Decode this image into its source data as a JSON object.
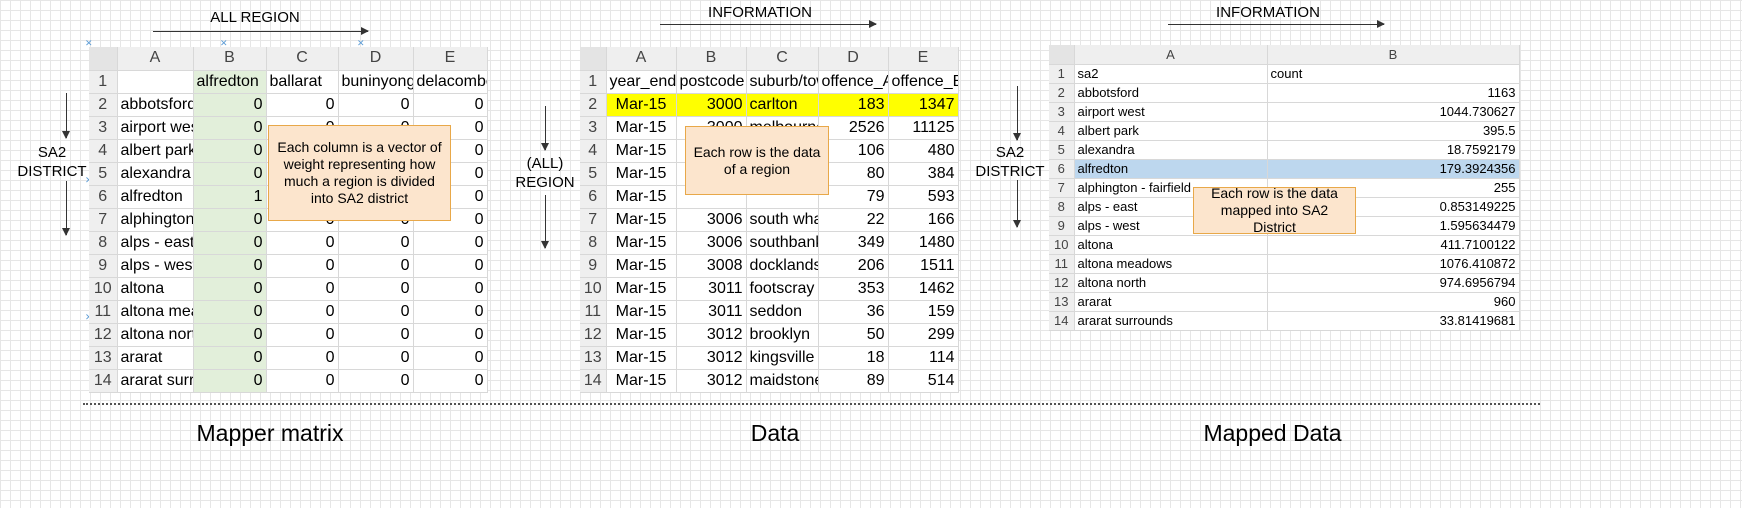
{
  "mapper": {
    "caption": "Mapper matrix",
    "top_label": "ALL REGION",
    "side_label": "SA2\nDISTRICT",
    "note": "Each column is a vector of weight representing how much a region is divided into SA2 district",
    "col_letters": [
      "A",
      "B",
      "C",
      "D",
      "E"
    ],
    "rows": [
      {
        "n": "1",
        "a": "",
        "b": "alfredton",
        "c": "ballarat",
        "d": "buninyong",
        "e": "delacombe"
      },
      {
        "n": "2",
        "a": "abbotsford",
        "b": "0",
        "c": "0",
        "d": "0",
        "e": "0"
      },
      {
        "n": "3",
        "a": "airport west",
        "b": "0",
        "c": "0",
        "d": "0",
        "e": "0"
      },
      {
        "n": "4",
        "a": "albert park",
        "b": "0",
        "c": "0",
        "d": "0",
        "e": "0"
      },
      {
        "n": "5",
        "a": "alexandra",
        "b": "0",
        "c": "0",
        "d": "0",
        "e": "0"
      },
      {
        "n": "6",
        "a": "alfredton",
        "b": "1",
        "c": "0",
        "d": "0",
        "e": "0"
      },
      {
        "n": "7",
        "a": "alphington",
        "b": "0",
        "c": "0",
        "d": "0",
        "e": "0"
      },
      {
        "n": "8",
        "a": "alps - east",
        "b": "0",
        "c": "0",
        "d": "0",
        "e": "0"
      },
      {
        "n": "9",
        "a": "alps - west",
        "b": "0",
        "c": "0",
        "d": "0",
        "e": "0"
      },
      {
        "n": "10",
        "a": "altona",
        "b": "0",
        "c": "0",
        "d": "0",
        "e": "0"
      },
      {
        "n": "11",
        "a": "altona meadows",
        "b": "0",
        "c": "0",
        "d": "0",
        "e": "0"
      },
      {
        "n": "12",
        "a": "altona north",
        "b": "0",
        "c": "0",
        "d": "0",
        "e": "0"
      },
      {
        "n": "13",
        "a": "ararat",
        "b": "0",
        "c": "0",
        "d": "0",
        "e": "0"
      },
      {
        "n": "14",
        "a": "ararat surrounds",
        "b": "0",
        "c": "0",
        "d": "0",
        "e": "0"
      }
    ]
  },
  "data": {
    "caption": "Data",
    "top_label": "INFORMATION",
    "side_label": "(ALL)\nREGION",
    "note": "Each row is the data of a region",
    "col_letters": [
      "A",
      "B",
      "C",
      "D",
      "E"
    ],
    "header": {
      "n": "1",
      "a": "year_ending",
      "b": "postcode",
      "c": "suburb/town",
      "d": "offence_A",
      "e": "offence_B"
    },
    "rows": [
      {
        "n": "2",
        "a": "Mar-15",
        "b": "3000",
        "c": "carlton",
        "d": "183",
        "e": "1347"
      },
      {
        "n": "3",
        "a": "Mar-15",
        "b": "3000",
        "c": "melbourne",
        "d": "2526",
        "e": "11125"
      },
      {
        "n": "4",
        "a": "Mar-15",
        "b": "",
        "c": "",
        "d": "106",
        "e": "480"
      },
      {
        "n": "5",
        "a": "Mar-15",
        "b": "",
        "c": "",
        "d": "80",
        "e": "384"
      },
      {
        "n": "6",
        "a": "Mar-15",
        "b": "",
        "c": "",
        "d": "79",
        "e": "593"
      },
      {
        "n": "7",
        "a": "Mar-15",
        "b": "3006",
        "c": "south wharf",
        "d": "22",
        "e": "166"
      },
      {
        "n": "8",
        "a": "Mar-15",
        "b": "3006",
        "c": "southbank",
        "d": "349",
        "e": "1480"
      },
      {
        "n": "9",
        "a": "Mar-15",
        "b": "3008",
        "c": "docklands",
        "d": "206",
        "e": "1511"
      },
      {
        "n": "10",
        "a": "Mar-15",
        "b": "3011",
        "c": "footscray",
        "d": "353",
        "e": "1462"
      },
      {
        "n": "11",
        "a": "Mar-15",
        "b": "3011",
        "c": "seddon",
        "d": "36",
        "e": "159"
      },
      {
        "n": "12",
        "a": "Mar-15",
        "b": "3012",
        "c": "brooklyn",
        "d": "50",
        "e": "299"
      },
      {
        "n": "13",
        "a": "Mar-15",
        "b": "3012",
        "c": "kingsville",
        "d": "18",
        "e": "114"
      },
      {
        "n": "14",
        "a": "Mar-15",
        "b": "3012",
        "c": "maidstone",
        "d": "89",
        "e": "514"
      }
    ]
  },
  "mapped": {
    "caption": "Mapped Data",
    "top_label": "INFORMATION",
    "side_label": "SA2\nDISTRICT",
    "note": "Each row is the data mapped into SA2 District",
    "col_letters": [
      "A",
      "B"
    ],
    "rows": [
      {
        "n": "1",
        "a": "sa2",
        "b": "count"
      },
      {
        "n": "2",
        "a": "abbotsford",
        "b": "1163"
      },
      {
        "n": "3",
        "a": "airport west",
        "b": "1044.730627"
      },
      {
        "n": "4",
        "a": "albert park",
        "b": "395.5"
      },
      {
        "n": "5",
        "a": "alexandra",
        "b": "18.7592179"
      },
      {
        "n": "6",
        "a": "alfredton",
        "b": "179.3924356"
      },
      {
        "n": "7",
        "a": "alphington - fairfield",
        "b": "255"
      },
      {
        "n": "8",
        "a": "alps - east",
        "b": "0.853149225"
      },
      {
        "n": "9",
        "a": "alps - west",
        "b": "1.595634479"
      },
      {
        "n": "10",
        "a": "altona",
        "b": "411.7100122"
      },
      {
        "n": "11",
        "a": "altona meadows",
        "b": "1076.410872"
      },
      {
        "n": "12",
        "a": "altona north",
        "b": "974.6956794"
      },
      {
        "n": "13",
        "a": "ararat",
        "b": "960"
      },
      {
        "n": "14",
        "a": "ararat surrounds",
        "b": "33.81419681"
      }
    ]
  },
  "colors": {
    "accent_green": "#e2efda",
    "highlight_yellow": "#ffff00",
    "highlight_blue": "#bdd7ee",
    "note_fill": "#fce5cd"
  }
}
